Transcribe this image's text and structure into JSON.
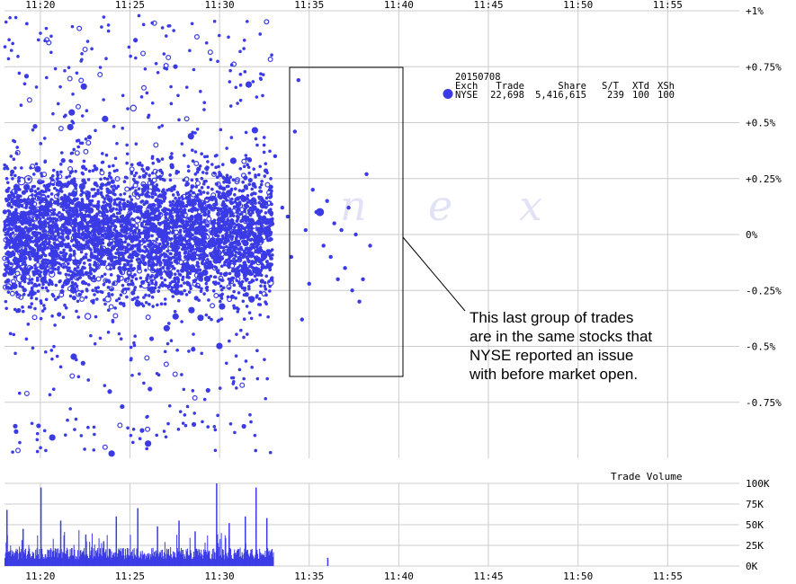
{
  "chart_data": [
    {
      "type": "scatter",
      "panel": "price",
      "x_ticks": [
        "11:20",
        "11:25",
        "11:30",
        "11:35",
        "11:40",
        "11:45",
        "11:50",
        "11:55"
      ],
      "y_ticks": [
        "+1%",
        "+0.75%",
        "+0.5%",
        "+0.25%",
        "0%",
        "-0.25%",
        "-0.5%",
        "-0.75%"
      ],
      "y_tick_values": [
        1.0,
        0.75,
        0.5,
        0.25,
        0,
        -0.25,
        -0.5,
        -0.75
      ],
      "xlim": [
        "11:18",
        "11:59"
      ],
      "ylim": [
        -1.0,
        1.0
      ],
      "grid": true,
      "marker_color": "#3b3be6",
      "watermark": [
        "n",
        "e",
        "x"
      ],
      "legend": {
        "date": "20150708",
        "headers": [
          "Exch",
          "Trade",
          "Share",
          "S/T",
          "XTd",
          "XSh"
        ],
        "rows": [
          {
            "exch": "NYSE",
            "trade": "22,698",
            "share": "5,416,615",
            "st": "239",
            "xtd": "100",
            "xsh": "100"
          }
        ]
      },
      "series": [
        {
          "name": "NYSE",
          "points": [
            {
              "time": "11:33.1",
              "pct": 0.35
            },
            {
              "time": "11:33.5",
              "pct": 0.12
            },
            {
              "time": "11:33.8",
              "pct": 0.08
            },
            {
              "time": "11:34.0",
              "pct": -0.1
            },
            {
              "time": "11:34.2",
              "pct": 0.46
            },
            {
              "time": "11:34.4",
              "pct": 0.69
            },
            {
              "time": "11:34.6",
              "pct": -0.38
            },
            {
              "time": "11:34.8",
              "pct": 0.02
            },
            {
              "time": "11:35.0",
              "pct": -0.22
            },
            {
              "time": "11:35.2",
              "pct": 0.2
            },
            {
              "time": "11:35.4",
              "pct": 0.1
            },
            {
              "time": "11:35.6",
              "pct": 0.1
            },
            {
              "time": "11:35.8",
              "pct": -0.05
            },
            {
              "time": "11:36.0",
              "pct": 0.15
            },
            {
              "time": "11:36.2",
              "pct": -0.1
            },
            {
              "time": "11:36.4",
              "pct": 0.05
            },
            {
              "time": "11:36.6",
              "pct": -0.2
            },
            {
              "time": "11:36.8",
              "pct": 0.02
            },
            {
              "time": "11:37.0",
              "pct": -0.15
            },
            {
              "time": "11:37.2",
              "pct": 0.12
            },
            {
              "time": "11:37.4",
              "pct": -0.25
            },
            {
              "time": "11:37.6",
              "pct": 0.0
            },
            {
              "time": "11:37.8",
              "pct": -0.3
            },
            {
              "time": "11:38.0",
              "pct": -0.2
            },
            {
              "time": "11:38.2",
              "pct": 0.27
            },
            {
              "time": "11:38.4",
              "pct": -0.05
            }
          ]
        }
      ],
      "annotation": {
        "lines": [
          "This last group of trades",
          "are in the same stocks that",
          "NYSE reported an issue",
          "with before market open."
        ],
        "box_range": {
          "time_start": "11:33",
          "time_end": "11:39",
          "pct_top": 0.75,
          "pct_bottom": -0.63
        }
      }
    },
    {
      "type": "bar",
      "panel": "volume",
      "title": "Trade Volume",
      "y_ticks": [
        "100K",
        "75K",
        "50K",
        "25K",
        "0K"
      ],
      "y_tick_values": [
        100000,
        75000,
        50000,
        25000,
        0
      ],
      "ylim": [
        0,
        100000
      ],
      "bar_color": "#3b3be6",
      "active_range": [
        "11:18",
        "11:33"
      ],
      "spikes": [
        {
          "time": "11:18.1",
          "value": 68000
        },
        {
          "time": "11:19.0",
          "value": 45000
        },
        {
          "time": "11:20.0",
          "value": 95000
        },
        {
          "time": "11:21.1",
          "value": 55000
        },
        {
          "time": "11:22.5",
          "value": 38000
        },
        {
          "time": "11:23.5",
          "value": 30000
        },
        {
          "time": "11:24.2",
          "value": 60000
        },
        {
          "time": "11:25.4",
          "value": 70000
        },
        {
          "time": "11:26.5",
          "value": 48000
        },
        {
          "time": "11:27.7",
          "value": 55000
        },
        {
          "time": "11:28.6",
          "value": 42000
        },
        {
          "time": "11:29.8",
          "value": 100000
        },
        {
          "time": "11:30.5",
          "value": 52000
        },
        {
          "time": "11:31.4",
          "value": 60000
        },
        {
          "time": "11:32.0",
          "value": 95000
        },
        {
          "time": "11:32.6",
          "value": 58000
        },
        {
          "time": "11:36.0",
          "value": 10000
        }
      ]
    }
  ]
}
